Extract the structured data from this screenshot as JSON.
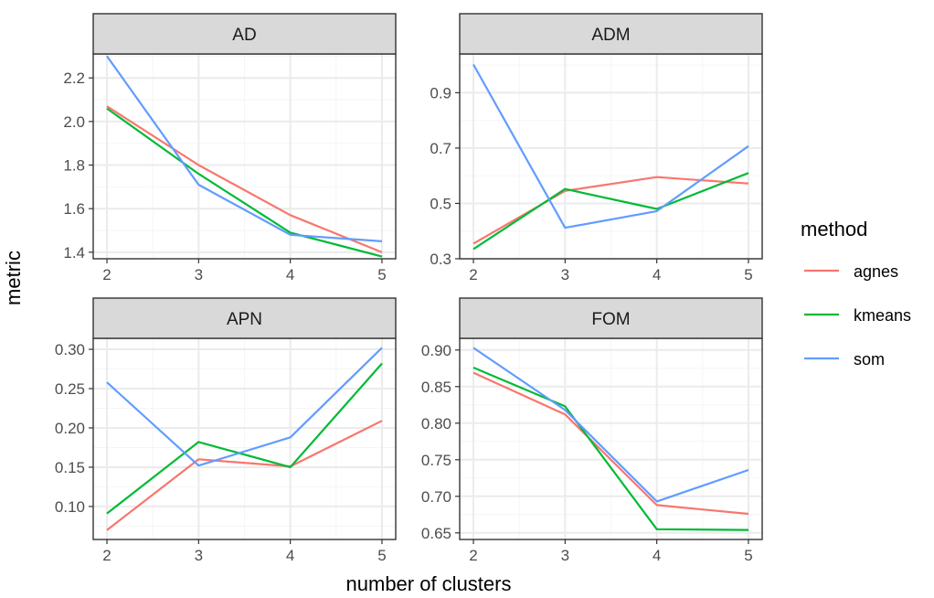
{
  "colors": {
    "agnes": "#F8766D",
    "kmeans": "#00BA38",
    "som": "#619CFF",
    "strip_fill": "#D9D9D9",
    "grid_major": "#EBEBEB",
    "grid_minor": "#F5F5F5",
    "border": "#333333",
    "tick_text": "#4D4D4D"
  },
  "axis_labels": {
    "x": "number of clusters",
    "y": "metric"
  },
  "legend": {
    "title": "method",
    "entries": [
      "agnes",
      "kmeans",
      "som"
    ],
    "placement": "right"
  },
  "chart_data": [
    {
      "type": "line",
      "title": "AD",
      "x": [
        2,
        3,
        4,
        5
      ],
      "xlim": [
        1.85,
        5.15
      ],
      "ylim": [
        1.37,
        2.31
      ],
      "yticks": [
        "1.4",
        "1.6",
        "1.8",
        "2.0",
        "2.2"
      ],
      "series": [
        {
          "name": "agnes",
          "values": [
            2.07,
            1.8,
            1.57,
            1.4
          ]
        },
        {
          "name": "kmeans",
          "values": [
            2.06,
            1.76,
            1.49,
            1.38
          ]
        },
        {
          "name": "som",
          "values": [
            2.3,
            1.71,
            1.48,
            1.45
          ]
        }
      ]
    },
    {
      "type": "line",
      "title": "ADM",
      "x": [
        2,
        3,
        4,
        5
      ],
      "xlim": [
        1.85,
        5.15
      ],
      "ylim": [
        0.3,
        1.04
      ],
      "yticks": [
        "0.3",
        "0.5",
        "0.7",
        "0.9"
      ],
      "series": [
        {
          "name": "agnes",
          "values": [
            0.355,
            0.545,
            0.595,
            0.572
          ]
        },
        {
          "name": "kmeans",
          "values": [
            0.335,
            0.552,
            0.48,
            0.61
          ]
        },
        {
          "name": "som",
          "values": [
            1.002,
            0.412,
            0.472,
            0.707
          ]
        }
      ]
    },
    {
      "type": "line",
      "title": "APN",
      "x": [
        2,
        3,
        4,
        5
      ],
      "xlim": [
        1.85,
        5.15
      ],
      "ylim": [
        0.058,
        0.314
      ],
      "yticks": [
        "0.10",
        "0.15",
        "0.20",
        "0.25",
        "0.30"
      ],
      "series": [
        {
          "name": "agnes",
          "values": [
            0.07,
            0.16,
            0.151,
            0.209
          ]
        },
        {
          "name": "kmeans",
          "values": [
            0.091,
            0.182,
            0.15,
            0.282
          ]
        },
        {
          "name": "som",
          "values": [
            0.258,
            0.152,
            0.188,
            0.302
          ]
        }
      ]
    },
    {
      "type": "line",
      "title": "FOM",
      "x": [
        2,
        3,
        4,
        5
      ],
      "xlim": [
        1.85,
        5.15
      ],
      "ylim": [
        0.641,
        0.916
      ],
      "yticks": [
        "0.65",
        "0.70",
        "0.75",
        "0.80",
        "0.85",
        "0.90"
      ],
      "series": [
        {
          "name": "agnes",
          "values": [
            0.869,
            0.812,
            0.688,
            0.676
          ]
        },
        {
          "name": "kmeans",
          "values": [
            0.876,
            0.823,
            0.655,
            0.654
          ]
        },
        {
          "name": "som",
          "values": [
            0.903,
            0.818,
            0.693,
            0.736
          ]
        }
      ]
    }
  ]
}
